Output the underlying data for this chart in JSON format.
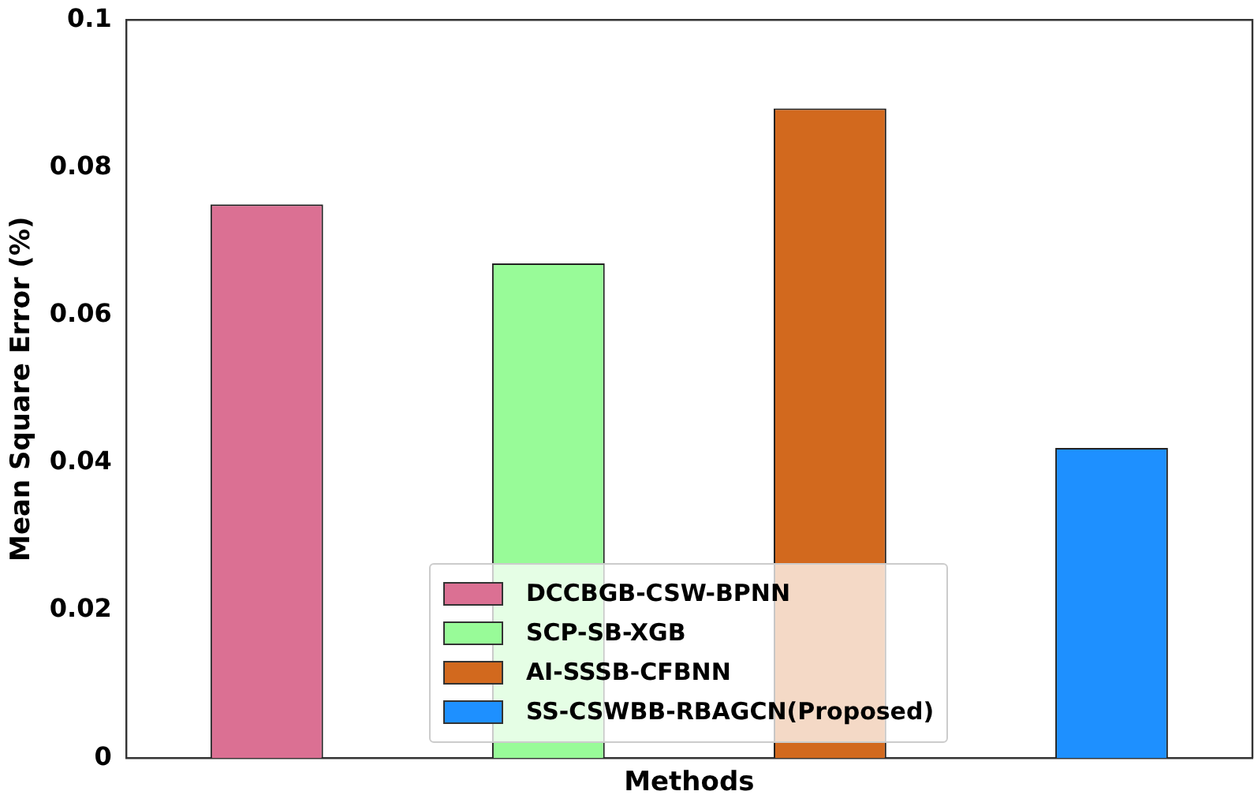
{
  "chart_data": {
    "type": "bar",
    "xlabel": "Methods",
    "ylabel": "Mean Square Error (%)",
    "categories": [
      null,
      null,
      null,
      null
    ],
    "series": [
      {
        "name": "DCCBGB-CSW-BPNN",
        "color": "#db7093",
        "values": [
          0.075,
          null,
          null,
          null
        ]
      },
      {
        "name": "SCP-SB-XGB",
        "color": "#98fb98",
        "values": [
          null,
          0.067,
          null,
          null
        ]
      },
      {
        "name": "AI-SSSB-CFBNN",
        "color": "#d2691e",
        "values": [
          null,
          null,
          0.088,
          null
        ]
      },
      {
        "name": "SS-CSWBB-RBAGCN(Proposed)",
        "color": "#1e90ff",
        "values": [
          null,
          null,
          null,
          0.042
        ]
      }
    ],
    "ylim": [
      0,
      0.1
    ],
    "yticks": [
      0,
      0.02,
      0.04,
      0.06,
      0.08,
      0.1
    ],
    "grid": false,
    "legend": "bottom",
    "tick_labels": "y"
  }
}
